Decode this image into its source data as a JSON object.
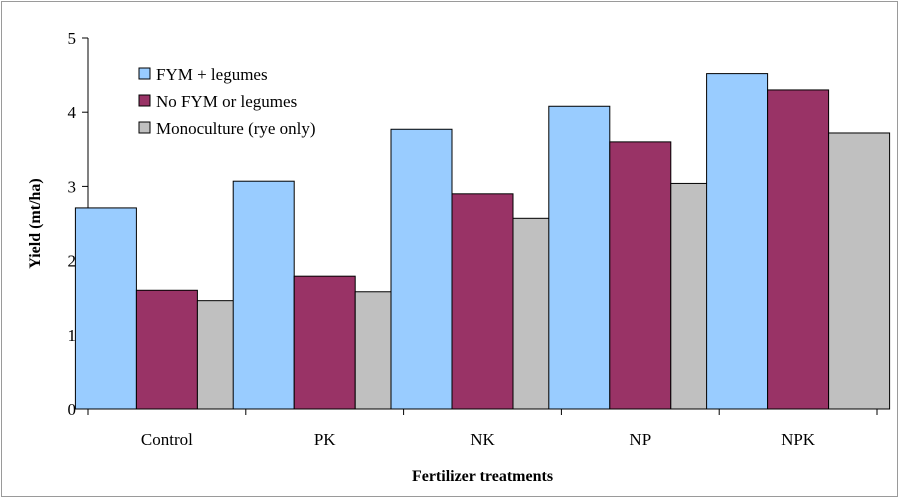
{
  "chart_data": {
    "type": "bar",
    "title": "",
    "xlabel": "Fertilizer treatments",
    "ylabel": "Yield (mt/ha)",
    "ylim": [
      0,
      5
    ],
    "yticks": [
      "0",
      "1",
      "2",
      "3",
      "4",
      "5"
    ],
    "grid": false,
    "legend_position": "top-left",
    "categories": [
      "Control",
      "PK",
      "NK",
      "NP",
      "NPK"
    ],
    "series": [
      {
        "name": "FYM + legumes",
        "color": "#99ccff",
        "values": [
          2.71,
          3.07,
          3.77,
          4.08,
          4.52
        ]
      },
      {
        "name": "No FYM or legumes",
        "color": "#993366",
        "values": [
          1.6,
          1.79,
          2.9,
          3.6,
          4.3
        ]
      },
      {
        "name": "Monoculture (rye only)",
        "color": "#c0c0c0",
        "values": [
          1.46,
          1.58,
          2.57,
          3.04,
          3.72
        ]
      }
    ]
  }
}
